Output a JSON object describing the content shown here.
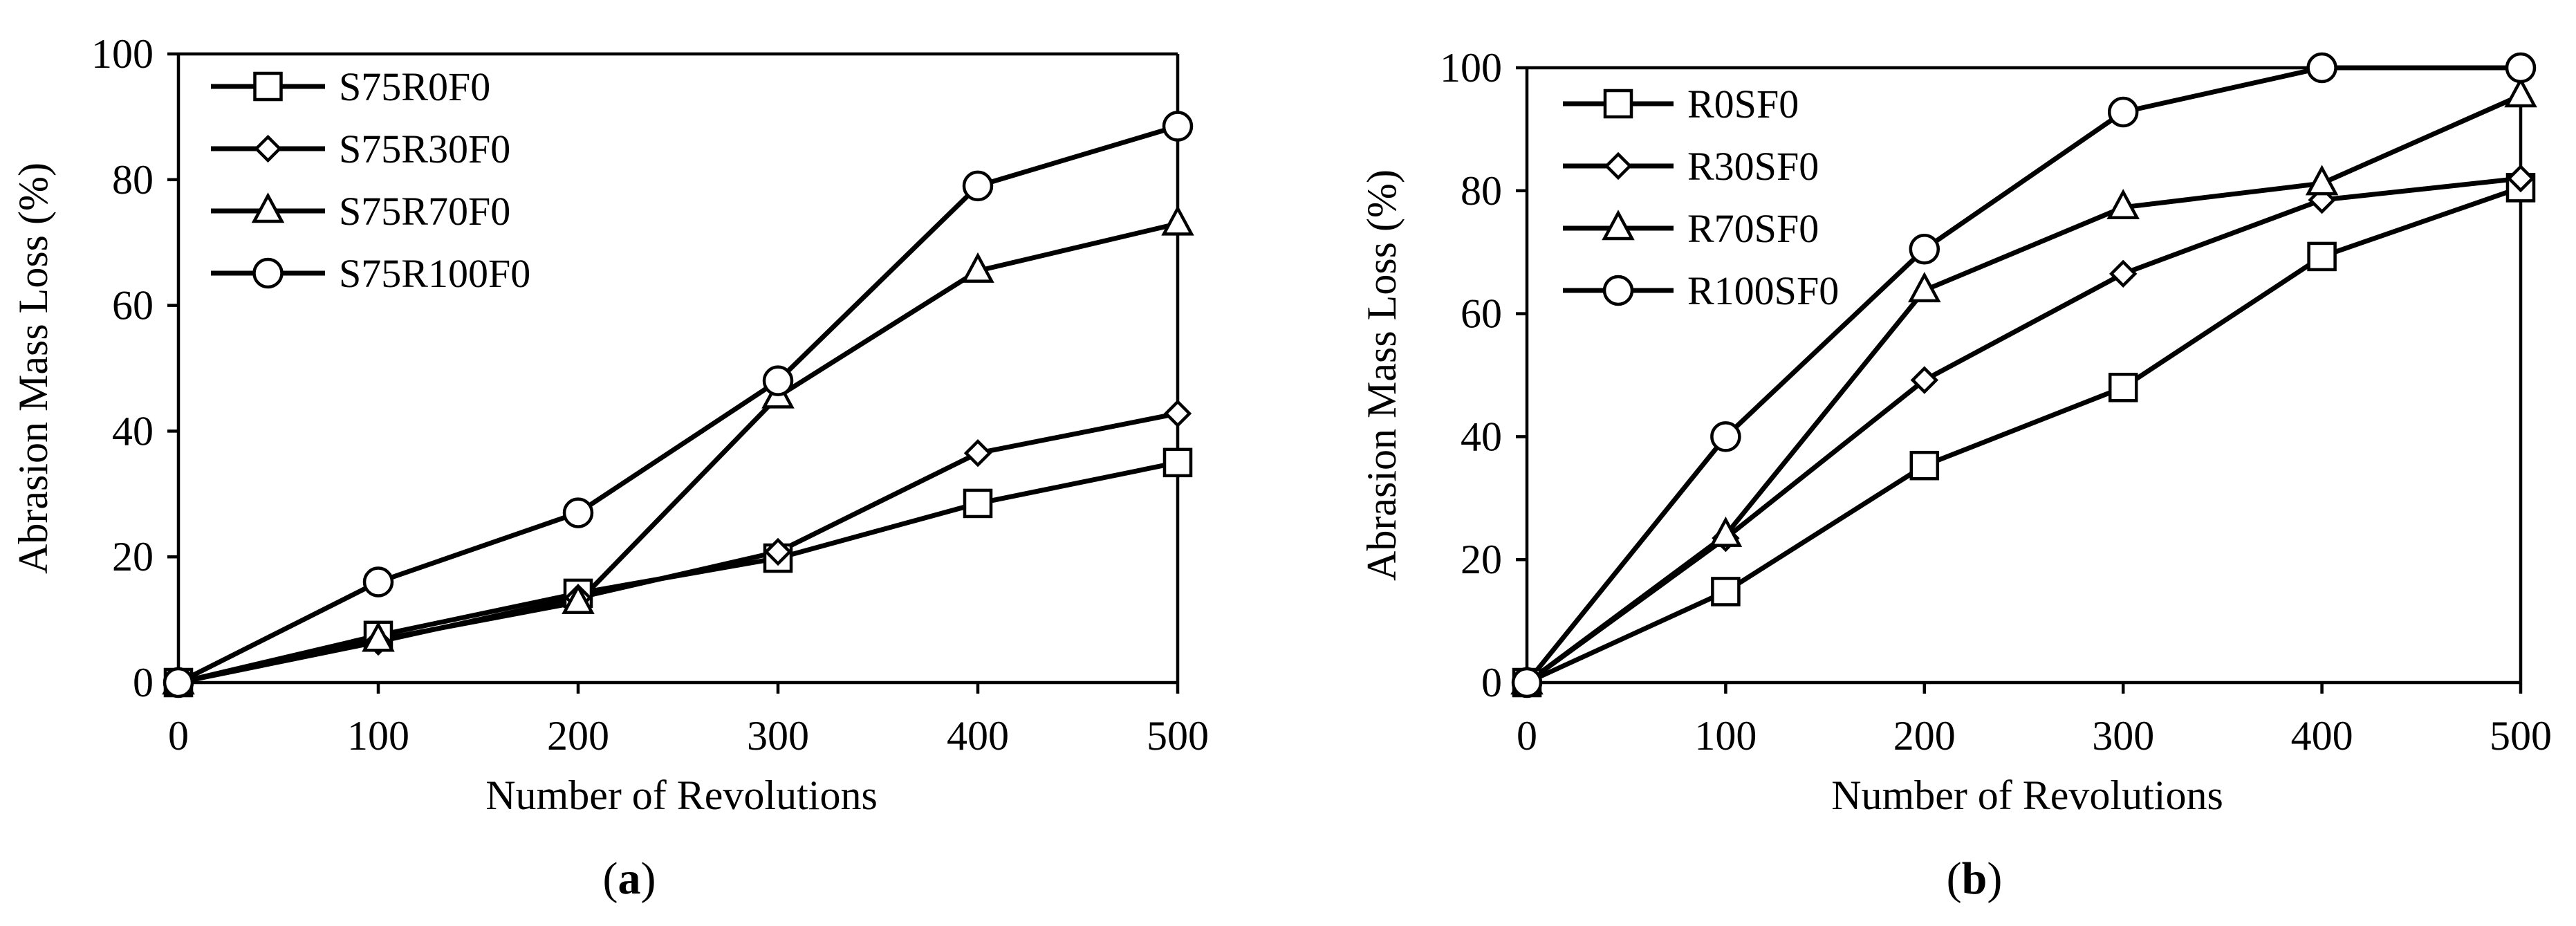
{
  "chart_data": [
    {
      "type": "line",
      "panel": "a",
      "caption_letter": "a",
      "caption_open": "(",
      "caption_close": ")",
      "xlabel": "Number of Revolutions",
      "ylabel": "Abrasion Mass Loss (%)",
      "x": [
        0,
        100,
        200,
        300,
        400,
        500
      ],
      "xlim": [
        0,
        500
      ],
      "ylim": [
        0,
        100
      ],
      "xticks": [
        0,
        100,
        200,
        300,
        400,
        500
      ],
      "yticks": [
        0,
        20,
        40,
        60,
        80,
        100
      ],
      "grid": false,
      "legend_position": "top-left",
      "series": [
        {
          "name": "S75R0F0",
          "marker": "square",
          "values": [
            0,
            7.5,
            14.2,
            19.8,
            28.5,
            35
          ]
        },
        {
          "name": "S75R30F0",
          "marker": "diamond",
          "values": [
            0,
            6.5,
            13.5,
            20.8,
            36.5,
            42.8
          ]
        },
        {
          "name": "S75R70F0",
          "marker": "triangle",
          "values": [
            0,
            6.8,
            12.8,
            45.5,
            65.5,
            73
          ]
        },
        {
          "name": "S75R100F0",
          "marker": "circle",
          "values": [
            0,
            16,
            27,
            48,
            79,
            88.5
          ]
        }
      ]
    },
    {
      "type": "line",
      "panel": "b",
      "caption_letter": "b",
      "caption_open": "(",
      "caption_close": ")",
      "xlabel": "Number of Revolutions",
      "ylabel": "Abrasion Mass Loss (%)",
      "x": [
        0,
        100,
        200,
        300,
        400,
        500
      ],
      "xlim": [
        0,
        500
      ],
      "ylim": [
        0,
        100
      ],
      "xticks": [
        0,
        100,
        200,
        300,
        400,
        500
      ],
      "yticks": [
        0,
        20,
        40,
        60,
        80,
        100
      ],
      "grid": false,
      "legend_position": "top-left",
      "series": [
        {
          "name": "R0SF0",
          "marker": "square",
          "values": [
            0,
            14.8,
            35.3,
            48,
            69.3,
            80.5
          ]
        },
        {
          "name": "R30SF0",
          "marker": "diamond",
          "values": [
            0,
            23.5,
            49.2,
            66.5,
            78.5,
            82
          ]
        },
        {
          "name": "R70SF0",
          "marker": "triangle",
          "values": [
            0,
            24,
            63.8,
            77.3,
            81.2,
            95.5
          ]
        },
        {
          "name": "R100SF0",
          "marker": "circle",
          "values": [
            0,
            40,
            70.5,
            92.8,
            100,
            100
          ]
        }
      ]
    }
  ]
}
